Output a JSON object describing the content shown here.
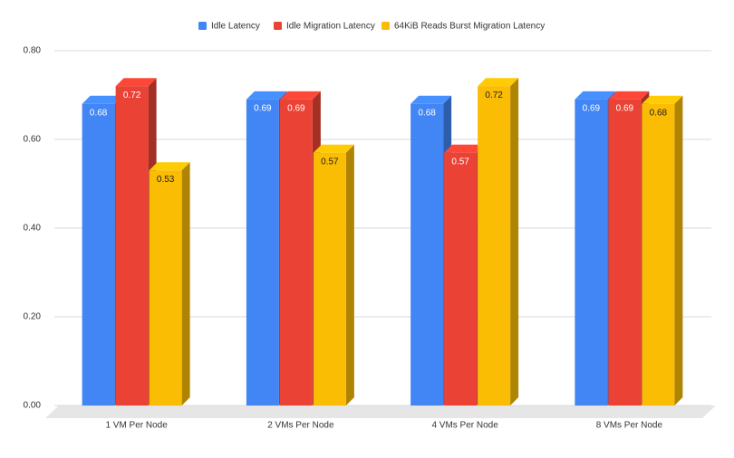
{
  "chart_data": {
    "type": "bar",
    "categories": [
      "1 VM Per Node",
      "2 VMs Per Node",
      "4 VMs Per Node",
      "8 VMs Per Node"
    ],
    "series": [
      {
        "name": "Idle Latency",
        "color": "#4285f4",
        "values": [
          0.68,
          0.69,
          0.68,
          0.69
        ]
      },
      {
        "name": "Idle Migration Latency",
        "color": "#ea4335",
        "values": [
          0.72,
          0.69,
          0.57,
          0.69
        ]
      },
      {
        "name": "64KiB Reads Burst Migration Latency",
        "color": "#fbbc04",
        "values": [
          0.53,
          0.57,
          0.72,
          0.68
        ]
      }
    ],
    "ylim": [
      0,
      0.8
    ],
    "yticks": [
      {
        "value": 0,
        "label": "0.00"
      },
      {
        "value": 0.2,
        "label": "0.20"
      },
      {
        "value": 0.4,
        "label": "0.40"
      },
      {
        "value": 0.6,
        "label": "0.60"
      },
      {
        "value": 0.8,
        "label": "0.80"
      }
    ],
    "grid": true,
    "legend": "top"
  }
}
